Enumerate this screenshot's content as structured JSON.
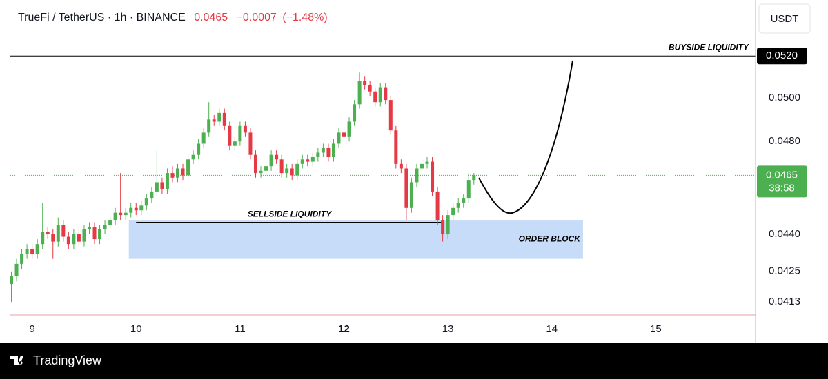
{
  "header": {
    "symbol": "TrueFi / TetherUS · 1h · BINANCE",
    "price": "0.0465",
    "change": "−0.0007",
    "change_pct": "(−1.48%)"
  },
  "footer": {
    "brand": "TradingView"
  },
  "chart_data": {
    "type": "candlestick",
    "currency": "USDT",
    "log_scale": true,
    "up_color": "#4caf50",
    "down_color": "#e53945",
    "xlim": [
      8.79,
      15.96
    ],
    "xticks": [
      9,
      10,
      11,
      12,
      13,
      14,
      15
    ],
    "bold_xtick": 12,
    "ylim": [
      0.0408,
      0.0548
    ],
    "yticks": [
      {
        "value": 0.05,
        "label": "0.0500"
      },
      {
        "value": 0.048,
        "label": "0.0480"
      },
      {
        "value": 0.044,
        "label": "0.0440"
      },
      0.0425,
      0.0413
    ],
    "x": [
      8.8,
      8.85,
      8.9,
      8.95,
      9.0,
      9.05,
      9.1,
      9.15,
      9.2,
      9.25,
      9.3,
      9.35,
      9.4,
      9.45,
      9.5,
      9.55,
      9.6,
      9.65,
      9.7,
      9.75,
      9.8,
      9.85,
      9.9,
      9.95,
      10.0,
      10.05,
      10.1,
      10.15,
      10.2,
      10.25,
      10.3,
      10.35,
      10.4,
      10.45,
      10.5,
      10.55,
      10.6,
      10.65,
      10.7,
      10.75,
      10.8,
      10.85,
      10.9,
      10.95,
      11.0,
      11.05,
      11.1,
      11.15,
      11.2,
      11.25,
      11.3,
      11.35,
      11.4,
      11.45,
      11.5,
      11.55,
      11.6,
      11.65,
      11.7,
      11.75,
      11.8,
      11.85,
      11.9,
      11.95,
      12.0,
      12.05,
      12.1,
      12.15,
      12.2,
      12.25,
      12.3,
      12.35,
      12.4,
      12.45,
      12.5,
      12.55,
      12.6,
      12.65,
      12.7,
      12.75,
      12.8,
      12.85,
      12.9,
      12.95,
      13.0,
      13.05,
      13.1,
      13.15,
      13.2,
      13.25
    ],
    "open": [
      0.042,
      0.0423,
      0.0428,
      0.0432,
      0.0434,
      0.0432,
      0.0436,
      0.0441,
      0.044,
      0.0437,
      0.0444,
      0.0439,
      0.0436,
      0.044,
      0.0437,
      0.0442,
      0.0443,
      0.0438,
      0.0442,
      0.0444,
      0.0446,
      0.0449,
      0.0448,
      0.0449,
      0.0451,
      0.045,
      0.0452,
      0.0455,
      0.0458,
      0.0462,
      0.0459,
      0.0466,
      0.0464,
      0.0468,
      0.0465,
      0.0472,
      0.0474,
      0.0479,
      0.0484,
      0.049,
      0.0489,
      0.0493,
      0.0487,
      0.0478,
      0.048,
      0.0487,
      0.0484,
      0.0474,
      0.0466,
      0.0467,
      0.0469,
      0.0474,
      0.0472,
      0.0466,
      0.0468,
      0.0465,
      0.047,
      0.0472,
      0.0471,
      0.0473,
      0.0475,
      0.0477,
      0.0473,
      0.0479,
      0.0484,
      0.0482,
      0.0489,
      0.0497,
      0.0508,
      0.0506,
      0.0503,
      0.0498,
      0.0505,
      0.0499,
      0.0485,
      0.047,
      0.0468,
      0.0451,
      0.0462,
      0.0468,
      0.047,
      0.0471,
      0.0458,
      0.0446,
      0.044,
      0.0448,
      0.0451,
      0.0453,
      0.0455,
      0.0463
    ],
    "high": [
      0.0425,
      0.043,
      0.0434,
      0.0436,
      0.0436,
      0.0438,
      0.0453,
      0.0443,
      0.0442,
      0.0447,
      0.0446,
      0.0441,
      0.0442,
      0.0443,
      0.0444,
      0.0445,
      0.0445,
      0.0444,
      0.0446,
      0.0448,
      0.0451,
      0.0466,
      0.0451,
      0.0453,
      0.0453,
      0.0454,
      0.0457,
      0.046,
      0.0476,
      0.0464,
      0.0468,
      0.0469,
      0.047,
      0.047,
      0.0474,
      0.0476,
      0.0481,
      0.0486,
      0.0498,
      0.0492,
      0.0495,
      0.0495,
      0.0489,
      0.0482,
      0.0489,
      0.0489,
      0.0486,
      0.0476,
      0.0469,
      0.0471,
      0.0476,
      0.0476,
      0.0474,
      0.047,
      0.047,
      0.0472,
      0.0474,
      0.0474,
      0.0475,
      0.0477,
      0.0479,
      0.0479,
      0.0481,
      0.0486,
      0.0486,
      0.0491,
      0.0499,
      0.0512,
      0.051,
      0.0508,
      0.0505,
      0.0507,
      0.0507,
      0.0501,
      0.0487,
      0.0472,
      0.047,
      0.0464,
      0.047,
      0.0472,
      0.0473,
      0.0473,
      0.046,
      0.0448,
      0.045,
      0.0453,
      0.0455,
      0.0457,
      0.0466,
      0.0466
    ],
    "low": [
      0.0413,
      0.0421,
      0.0426,
      0.043,
      0.043,
      0.043,
      0.0434,
      0.0438,
      0.043,
      0.0435,
      0.0437,
      0.0434,
      0.0434,
      0.0435,
      0.0435,
      0.044,
      0.0436,
      0.0436,
      0.044,
      0.0442,
      0.0444,
      0.0446,
      0.0446,
      0.0447,
      0.0448,
      0.0448,
      0.045,
      0.0453,
      0.0456,
      0.0457,
      0.0457,
      0.0462,
      0.0462,
      0.0463,
      0.0463,
      0.047,
      0.0472,
      0.0477,
      0.0482,
      0.0487,
      0.0487,
      0.0485,
      0.0476,
      0.0476,
      0.0478,
      0.0482,
      0.0472,
      0.0464,
      0.0464,
      0.0465,
      0.0467,
      0.047,
      0.0464,
      0.0464,
      0.0463,
      0.0463,
      0.0468,
      0.0469,
      0.0469,
      0.0471,
      0.0473,
      0.0471,
      0.0471,
      0.0477,
      0.048,
      0.048,
      0.0487,
      0.0495,
      0.0504,
      0.0501,
      0.0496,
      0.0496,
      0.0497,
      0.0483,
      0.0468,
      0.0466,
      0.0446,
      0.0449,
      0.046,
      0.0466,
      0.0468,
      0.0456,
      0.0444,
      0.0437,
      0.0438,
      0.0446,
      0.0449,
      0.0451,
      0.0453,
      0.0461
    ],
    "close": [
      0.0423,
      0.0428,
      0.0432,
      0.0434,
      0.0432,
      0.0436,
      0.0441,
      0.044,
      0.0437,
      0.0444,
      0.0439,
      0.0436,
      0.044,
      0.0437,
      0.0442,
      0.0443,
      0.0438,
      0.0442,
      0.0444,
      0.0446,
      0.0449,
      0.0448,
      0.0449,
      0.0451,
      0.045,
      0.0452,
      0.0455,
      0.0458,
      0.0462,
      0.0459,
      0.0466,
      0.0464,
      0.0468,
      0.0465,
      0.0472,
      0.0474,
      0.0479,
      0.0484,
      0.049,
      0.0489,
      0.0493,
      0.0487,
      0.0478,
      0.048,
      0.0487,
      0.0484,
      0.0474,
      0.0466,
      0.0467,
      0.0469,
      0.0474,
      0.0472,
      0.0466,
      0.0468,
      0.0465,
      0.047,
      0.0472,
      0.0471,
      0.0473,
      0.0475,
      0.0477,
      0.0473,
      0.0479,
      0.0484,
      0.0482,
      0.0489,
      0.0497,
      0.0508,
      0.0506,
      0.0503,
      0.0498,
      0.0505,
      0.0499,
      0.0485,
      0.047,
      0.0468,
      0.0451,
      0.0462,
      0.0468,
      0.047,
      0.0471,
      0.0458,
      0.0446,
      0.044,
      0.0448,
      0.0451,
      0.0453,
      0.0455,
      0.0463,
      0.0465
    ],
    "level": {
      "text": "BUYSIDE LIQUIDITY",
      "value": 0.052,
      "label": "0.0520",
      "color": "#000000"
    },
    "sellside": {
      "text": "SELLSIDE LIQUIDITY",
      "x": [
        10.0,
        12.95
      ],
      "value": 0.0445
    },
    "zone": {
      "text": "ORDER BLOCK",
      "x": [
        9.93,
        14.3
      ],
      "y": [
        0.043,
        0.0446
      ],
      "color": "#c7dcf8"
    },
    "last_price": {
      "value": 0.0465,
      "label": "0.0465",
      "countdown": "38:58",
      "color": "#4caf50"
    }
  }
}
